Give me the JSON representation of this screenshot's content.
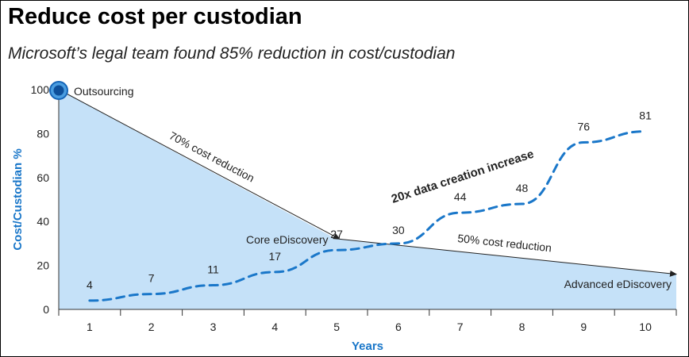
{
  "title": "Reduce cost per custodian",
  "subtitle": "Microsoft’s legal team found 85% reduction in cost/custodian",
  "colors": {
    "area_fill": "#c5e1f8",
    "series_line": "#1a77c9",
    "axis_label": "#1a77c9",
    "arrow": "#222222",
    "marker": "#1565b8"
  },
  "chart_data": {
    "type": "area",
    "xlabel": "Years",
    "ylabel": "Cost/Custodian %",
    "x": [
      1,
      2,
      3,
      4,
      5,
      6,
      7,
      8,
      9,
      10
    ],
    "xlim": [
      0.5,
      10.5
    ],
    "ylim": [
      0,
      100
    ],
    "yticks": [
      0,
      20,
      40,
      60,
      80,
      100
    ],
    "grid": false,
    "series": [
      {
        "style": "area",
        "points": [
          [
            0.5,
            100
          ],
          [
            5,
            32
          ],
          [
            10.5,
            16
          ]
        ]
      },
      {
        "style": "dashed-line",
        "values": [
          4,
          7,
          11,
          17,
          27,
          30,
          44,
          48,
          76,
          81
        ],
        "data_labels": [
          "4",
          "7",
          "11",
          "17",
          "27",
          "30",
          "44",
          "48",
          "76",
          "81"
        ]
      }
    ],
    "annotations": {
      "outsourcing": "Outsourcing",
      "core": "Core eDiscovery",
      "advanced": "Advanced eDiscovery",
      "reduction70": "70% cost reduction",
      "reduction50": "50% cost reduction",
      "data_increase": "20x data creation increase"
    }
  }
}
